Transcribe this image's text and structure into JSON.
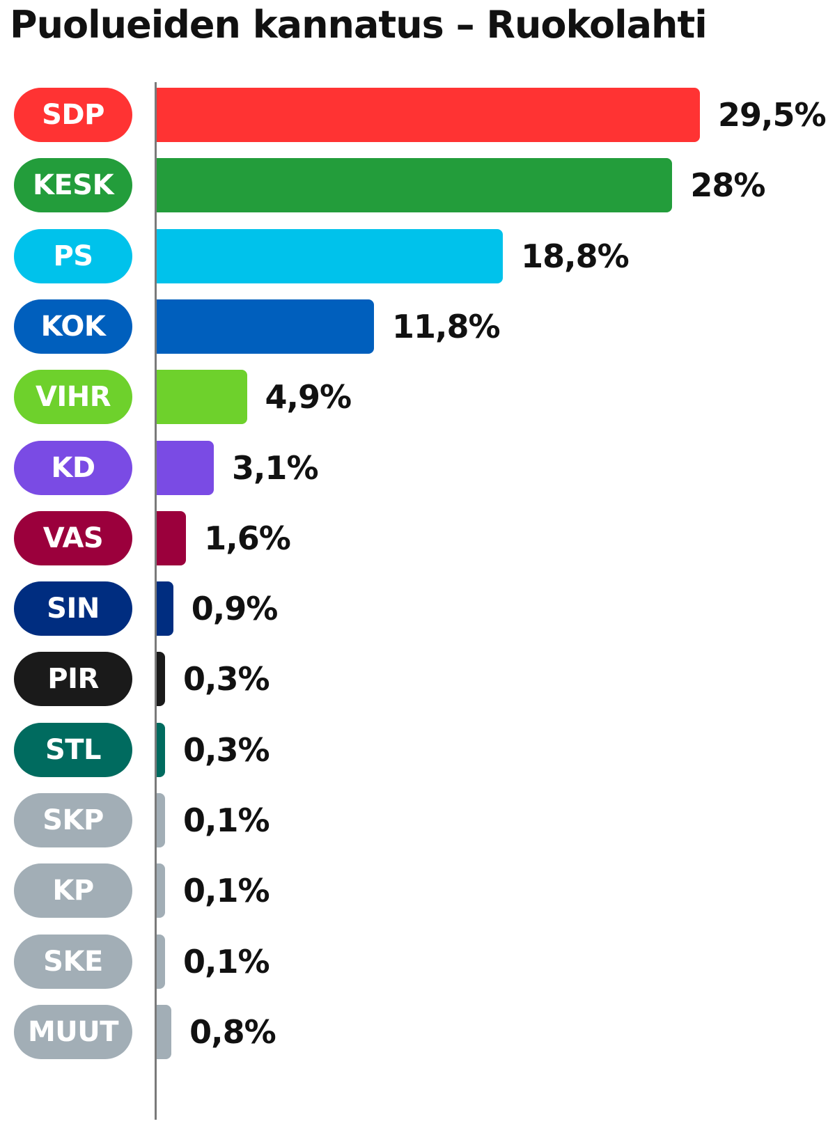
{
  "chart_data": {
    "type": "bar",
    "orientation": "horizontal",
    "title": "Puolueiden kannatus – Ruokolahti",
    "categories": [
      "SDP",
      "KESK",
      "PS",
      "KOK",
      "VIHR",
      "KD",
      "VAS",
      "SIN",
      "PIR",
      "STL",
      "SKP",
      "KP",
      "SKE",
      "MUUT"
    ],
    "values": [
      29.5,
      28,
      18.8,
      11.8,
      4.9,
      3.1,
      1.6,
      0.9,
      0.3,
      0.3,
      0.1,
      0.1,
      0.1,
      0.8
    ],
    "value_labels": [
      "29,5%",
      "28%",
      "18,8%",
      "11,8%",
      "4,9%",
      "3,1%",
      "1,6%",
      "0,9%",
      "0,3%",
      "0,3%",
      "0,1%",
      "0,1%",
      "0,1%",
      "0,8%"
    ],
    "colors": [
      "#ff3333",
      "#239d3b",
      "#00c2eb",
      "#005fbd",
      "#6ed12c",
      "#7a4be4",
      "#9b003c",
      "#002d80",
      "#1a1a1a",
      "#006b5f",
      "#a2aeb6",
      "#a2aeb6",
      "#a2aeb6",
      "#a2aeb6"
    ],
    "xlim": [
      0,
      29.5
    ],
    "legend": "none",
    "grid": false
  }
}
